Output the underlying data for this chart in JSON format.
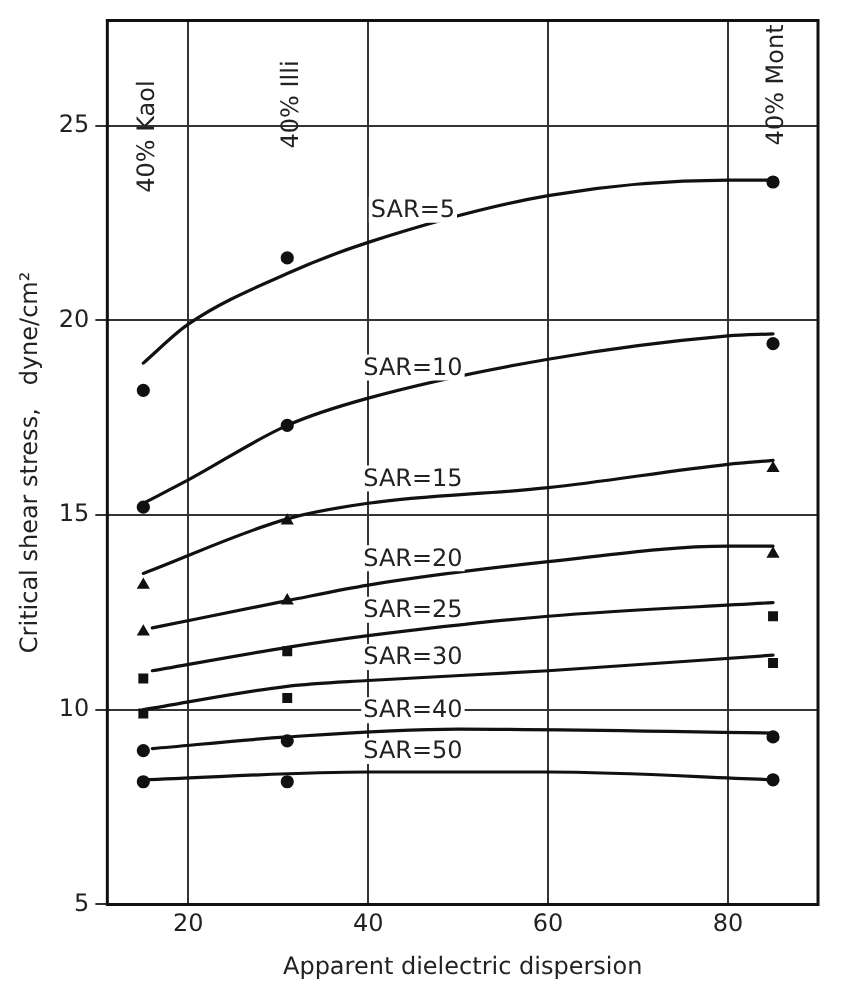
{
  "chart_data": {
    "type": "line",
    "xlabel": "Apparent dielectric dispersion",
    "ylabel": "Critical shear stress,   dyne/cm²",
    "xlim": [
      11,
      90
    ],
    "xticks": [
      20,
      40,
      60,
      80
    ],
    "ylim": [
      5,
      27.7
    ],
    "yticks": [
      5,
      10,
      15,
      20,
      25
    ],
    "grid": true,
    "legend": false,
    "line_style": "solid",
    "series": [
      {
        "name": "SAR=5",
        "color": "#111111",
        "x": [
          15,
          20,
          31,
          40,
          60,
          80,
          85
        ],
        "values": [
          18.9,
          19.9,
          21.2,
          22.0,
          23.2,
          23.6,
          23.6
        ]
      },
      {
        "name": "SAR=10",
        "color": "#111111",
        "x": [
          15,
          20,
          31,
          40,
          60,
          80,
          85
        ],
        "values": [
          15.3,
          15.9,
          17.3,
          18.0,
          19.0,
          19.6,
          19.65
        ]
      },
      {
        "name": "SAR=15",
        "color": "#111111",
        "x": [
          15,
          31,
          40,
          60,
          80,
          85
        ],
        "values": [
          13.5,
          14.9,
          15.3,
          15.7,
          16.3,
          16.4
        ]
      },
      {
        "name": "SAR=20",
        "color": "#111111",
        "x": [
          16,
          31,
          40,
          60,
          80,
          85
        ],
        "values": [
          12.1,
          12.8,
          13.2,
          13.8,
          14.2,
          14.2
        ]
      },
      {
        "name": "SAR=25",
        "color": "#111111",
        "x": [
          16,
          31,
          40,
          60,
          85
        ],
        "values": [
          11.0,
          11.6,
          11.9,
          12.4,
          12.75
        ]
      },
      {
        "name": "SAR=30",
        "color": "#111111",
        "x": [
          15,
          31,
          40,
          60,
          85
        ],
        "values": [
          10.0,
          10.6,
          10.75,
          11.0,
          11.4
        ]
      },
      {
        "name": "SAR=40",
        "color": "#111111",
        "x": [
          16,
          31,
          50,
          85
        ],
        "values": [
          9.0,
          9.3,
          9.5,
          9.4
        ]
      },
      {
        "name": "SAR=50",
        "color": "#111111",
        "x": [
          15,
          40,
          60,
          85
        ],
        "values": [
          8.2,
          8.4,
          8.4,
          8.2
        ]
      },
      {
        "type": "scatter",
        "marker": "circle",
        "color": "#111111",
        "x": [
          15,
          31,
          85
        ],
        "values": [
          18.2,
          21.6,
          23.55
        ]
      },
      {
        "type": "scatter",
        "marker": "circle",
        "color": "#111111",
        "x": [
          15,
          31,
          85
        ],
        "values": [
          15.2,
          17.3,
          19.4
        ]
      },
      {
        "type": "scatter",
        "marker": "triangle",
        "color": "#111111",
        "x": [
          15,
          31,
          85
        ],
        "values": [
          13.2,
          14.85,
          16.2
        ]
      },
      {
        "type": "scatter",
        "marker": "triangle",
        "color": "#111111",
        "x": [
          15,
          31,
          85
        ],
        "values": [
          12.0,
          12.8,
          14.0
        ]
      },
      {
        "type": "scatter",
        "marker": "square",
        "color": "#111111",
        "x": [
          15,
          31,
          85
        ],
        "values": [
          10.8,
          11.5,
          12.4
        ]
      },
      {
        "type": "scatter",
        "marker": "square",
        "color": "#111111",
        "x": [
          15,
          31,
          85
        ],
        "values": [
          9.9,
          10.3,
          11.2
        ]
      },
      {
        "type": "scatter",
        "marker": "circle",
        "color": "#111111",
        "x": [
          15,
          31,
          85
        ],
        "values": [
          8.95,
          9.2,
          9.3
        ]
      },
      {
        "type": "scatter",
        "marker": "circle",
        "color": "#111111",
        "x": [
          15,
          31,
          85
        ],
        "values": [
          8.15,
          8.15,
          8.2
        ]
      }
    ],
    "annotations": [
      "40% Kaol",
      "40% Illi",
      "40% Mont"
    ]
  }
}
